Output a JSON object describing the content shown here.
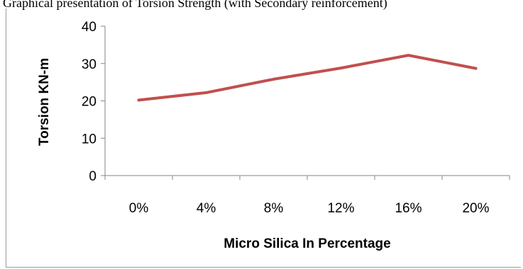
{
  "caption": "Graphical presentation of Torsion Strength (with Secondary reinforcement)",
  "chart_data": {
    "type": "line",
    "categories": [
      "0%",
      "4%",
      "8%",
      "12%",
      "16%",
      "20%"
    ],
    "series": [
      {
        "values": [
          20.2,
          22.2,
          25.8,
          28.8,
          32.2,
          28.7
        ],
        "color": "#c0504d"
      }
    ],
    "xlabel": "Micro Silica In Percentage",
    "ylabel": "Torsion KN-m",
    "ylim": [
      0,
      40
    ],
    "yticks": [
      0,
      10,
      20,
      30,
      40
    ],
    "grid": false,
    "legend": "none"
  }
}
